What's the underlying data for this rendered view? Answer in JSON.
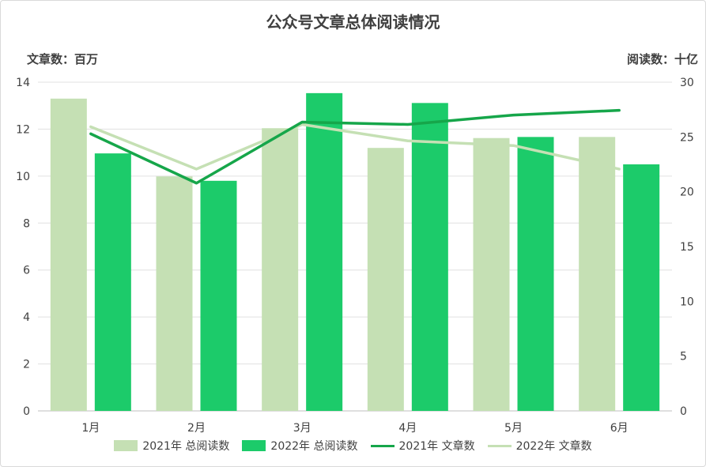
{
  "title": "公众号文章总体阅读情况",
  "colors": {
    "bar2021": "#c5e0b4",
    "bar2022": "#1ccb6a",
    "line2021": "#16a64a",
    "line2022": "#c5e0b4",
    "grid": "#e0e0e0",
    "text": "#404040"
  },
  "chart_data": {
    "type": "bar",
    "title": "公众号文章总体阅读情况",
    "categories": [
      "1月",
      "2月",
      "3月",
      "4月",
      "5月",
      "6月"
    ],
    "left_axis": {
      "label": "文章数：百万",
      "ylim": [
        0,
        14
      ],
      "ticks": [
        0,
        2,
        4,
        6,
        8,
        10,
        12,
        14
      ]
    },
    "right_axis": {
      "label": "阅读数：十亿",
      "ylim": [
        0,
        30
      ],
      "ticks": [
        0,
        5,
        10,
        15,
        20,
        25,
        30
      ]
    },
    "series": [
      {
        "name": "2021年 总阅读数",
        "kind": "bar",
        "axis": "right",
        "color": "#c5e0b4",
        "values": [
          28.5,
          21.4,
          25.8,
          24.0,
          24.9,
          25.0
        ]
      },
      {
        "name": "2022年 总阅读数",
        "kind": "bar",
        "axis": "right",
        "color": "#1ccb6a",
        "values": [
          23.5,
          21.0,
          29.0,
          28.1,
          25.0,
          22.5
        ]
      },
      {
        "name": "2021年 文章数",
        "kind": "line",
        "axis": "left",
        "color": "#16a64a",
        "values": [
          11.8,
          9.7,
          12.3,
          12.2,
          12.6,
          12.8
        ]
      },
      {
        "name": "2022年 文章数",
        "kind": "line",
        "axis": "left",
        "color": "#c5e0b4",
        "values": [
          12.1,
          10.3,
          12.2,
          11.5,
          11.3,
          10.3
        ]
      }
    ],
    "grid": true,
    "legend_position": "bottom"
  }
}
